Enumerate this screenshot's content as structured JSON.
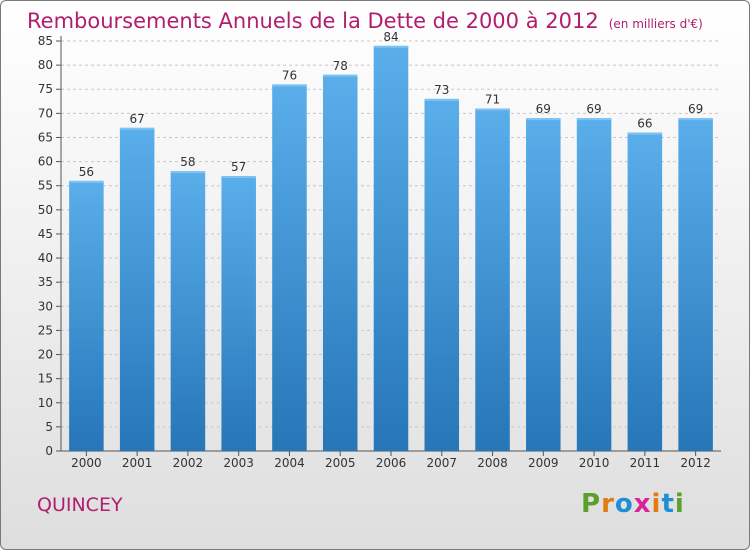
{
  "header": {
    "title": "Remboursements Annuels de la Dette de 2000 à 2012",
    "unit": "(en milliers d'€)"
  },
  "footer": {
    "city": "QUINCEY",
    "logo_letters": [
      "P",
      "r",
      "o",
      "x",
      "i",
      "t",
      "i"
    ]
  },
  "colors": {
    "title": "#b21d6e",
    "bar_top": "#5aaeea",
    "bar_bottom": "#2676b8",
    "grid": "#c8c8c8",
    "logo": [
      "#5aa02c",
      "#e37b14",
      "#1d8fd6",
      "#d8259c",
      "#e37b14",
      "#1d8fd6",
      "#5aa02c"
    ]
  },
  "chart_data": {
    "type": "bar",
    "title": "Remboursements Annuels de la Dette de 2000 à 2012",
    "unit": "(en milliers d'€)",
    "categories": [
      "2000",
      "2001",
      "2002",
      "2003",
      "2004",
      "2005",
      "2006",
      "2007",
      "2008",
      "2009",
      "2010",
      "2011",
      "2012"
    ],
    "values": [
      56,
      67,
      58,
      57,
      76,
      78,
      84,
      73,
      71,
      69,
      69,
      66,
      69
    ],
    "yticks": [
      0,
      5,
      10,
      15,
      20,
      25,
      30,
      35,
      40,
      45,
      50,
      55,
      60,
      65,
      70,
      75,
      80,
      85
    ],
    "ylim": [
      0,
      85
    ],
    "grid": true,
    "data_labels": true
  }
}
